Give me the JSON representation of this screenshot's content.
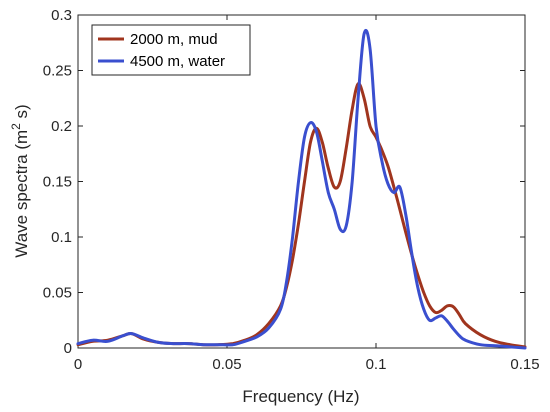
{
  "chart_data": {
    "type": "line",
    "xlabel": "Frequency (Hz)",
    "ylabel_main": "Wave spectra (m",
    "ylabel_sup": "2",
    "ylabel_tail": " s)",
    "xlim": [
      0,
      0.15
    ],
    "ylim": [
      0,
      0.3
    ],
    "xticks": [
      0,
      0.05,
      0.1,
      0.15
    ],
    "xtick_labels": [
      "0",
      "0.05",
      "0.1",
      "0.15"
    ],
    "yticks": [
      0,
      0.05,
      0.1,
      0.15,
      0.2,
      0.25,
      0.3
    ],
    "ytick_labels": [
      "0",
      "0.05",
      "0.1",
      "0.15",
      "0.2",
      "0.25",
      "0.3"
    ],
    "grid": false,
    "legend_position": "top-left",
    "series": [
      {
        "name": "2000 m, mud",
        "color": "#a0351e",
        "x": [
          0,
          0.005,
          0.01,
          0.015,
          0.018,
          0.022,
          0.027,
          0.032,
          0.037,
          0.042,
          0.047,
          0.052,
          0.056,
          0.06,
          0.064,
          0.068,
          0.07,
          0.072,
          0.074,
          0.076,
          0.078,
          0.08,
          0.082,
          0.084,
          0.086,
          0.088,
          0.09,
          0.092,
          0.094,
          0.096,
          0.098,
          0.1,
          0.102,
          0.104,
          0.106,
          0.108,
          0.11,
          0.112,
          0.114,
          0.116,
          0.118,
          0.12,
          0.122,
          0.124,
          0.126,
          0.128,
          0.13,
          0.135,
          0.14,
          0.145,
          0.15
        ],
        "y": [
          0.003,
          0.006,
          0.007,
          0.011,
          0.013,
          0.008,
          0.005,
          0.004,
          0.004,
          0.003,
          0.003,
          0.004,
          0.007,
          0.012,
          0.022,
          0.038,
          0.055,
          0.08,
          0.112,
          0.15,
          0.185,
          0.198,
          0.185,
          0.162,
          0.145,
          0.15,
          0.18,
          0.215,
          0.238,
          0.225,
          0.2,
          0.19,
          0.178,
          0.164,
          0.145,
          0.125,
          0.104,
          0.084,
          0.066,
          0.05,
          0.038,
          0.032,
          0.034,
          0.038,
          0.037,
          0.03,
          0.022,
          0.012,
          0.006,
          0.003,
          0.001
        ]
      },
      {
        "name": "4500 m, water",
        "color": "#3a4fcf",
        "x": [
          0,
          0.005,
          0.01,
          0.015,
          0.018,
          0.022,
          0.027,
          0.032,
          0.037,
          0.042,
          0.047,
          0.052,
          0.056,
          0.06,
          0.064,
          0.068,
          0.07,
          0.072,
          0.074,
          0.076,
          0.078,
          0.08,
          0.082,
          0.084,
          0.086,
          0.088,
          0.09,
          0.092,
          0.094,
          0.096,
          0.098,
          0.1,
          0.102,
          0.104,
          0.106,
          0.108,
          0.11,
          0.112,
          0.114,
          0.116,
          0.118,
          0.12,
          0.122,
          0.124,
          0.126,
          0.128,
          0.13,
          0.135,
          0.14,
          0.145,
          0.15
        ],
        "y": [
          0.004,
          0.007,
          0.006,
          0.011,
          0.013,
          0.009,
          0.005,
          0.004,
          0.004,
          0.003,
          0.003,
          0.003,
          0.006,
          0.01,
          0.018,
          0.035,
          0.06,
          0.1,
          0.15,
          0.19,
          0.203,
          0.195,
          0.168,
          0.14,
          0.125,
          0.107,
          0.11,
          0.15,
          0.225,
          0.283,
          0.27,
          0.2,
          0.168,
          0.148,
          0.14,
          0.145,
          0.12,
          0.085,
          0.055,
          0.035,
          0.025,
          0.027,
          0.029,
          0.024,
          0.017,
          0.011,
          0.007,
          0.003,
          0.002,
          0.001,
          0.0
        ]
      }
    ]
  }
}
